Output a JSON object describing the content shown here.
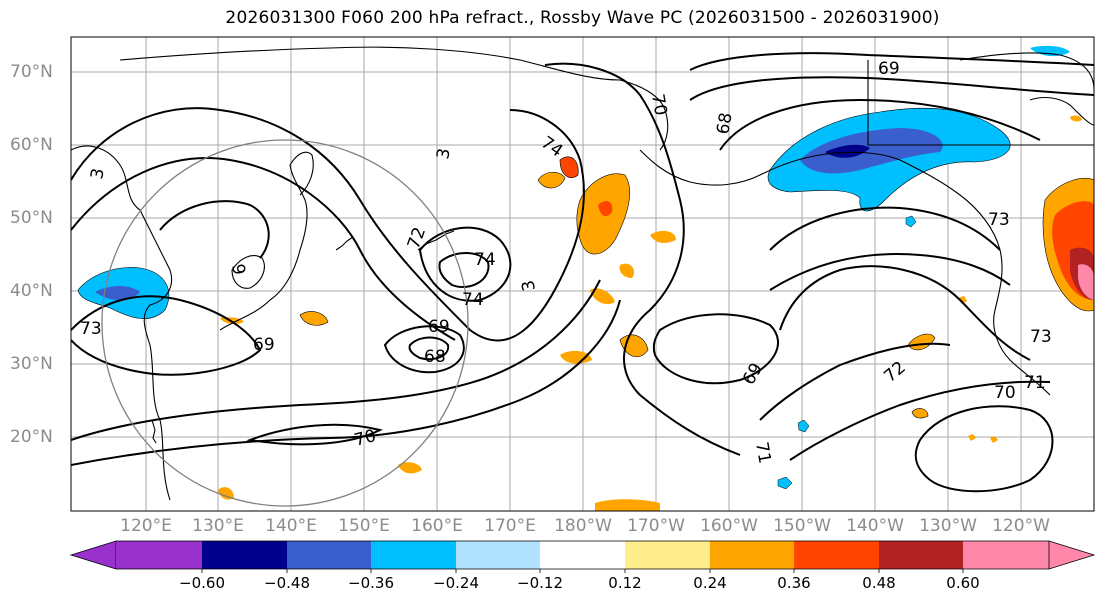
{
  "title": "2026031300 F060 200 hPa refract., Rossby Wave PC (2026031500 - 2026031900)",
  "lat_labels": [
    "70°N",
    "60°N",
    "50°N",
    "40°N",
    "30°N",
    "20°N"
  ],
  "lon_labels": [
    "120°E",
    "130°E",
    "140°E",
    "150°E",
    "160°E",
    "170°E",
    "180°W",
    "170°W",
    "160°W",
    "150°W",
    "140°W",
    "130°W",
    "120°W"
  ],
  "contour_labels": [
    "69",
    "70",
    "68",
    "74",
    "72",
    "74",
    "74",
    "3",
    "9",
    "69",
    "68",
    "73",
    "69",
    "70",
    "69",
    "71",
    "72",
    "70",
    "71",
    "73",
    "73",
    "3",
    "3"
  ],
  "colorbar": {
    "ticks": [
      "−0.60",
      "−0.48",
      "−0.36",
      "−0.24",
      "−0.12",
      "0.12",
      "0.24",
      "0.36",
      "0.48",
      "0.60"
    ],
    "colors": [
      "#9932cc",
      "#00008b",
      "#3a5fcd",
      "#00bfff",
      "#b0e2ff",
      "#ffffff",
      "#ffec8b",
      "#ffa500",
      "#ff4500",
      "#b22222",
      "#ff88aa"
    ]
  },
  "palette": {
    "land_line": "#000000",
    "grid": "#a9a9a9",
    "circle": "#808080"
  }
}
